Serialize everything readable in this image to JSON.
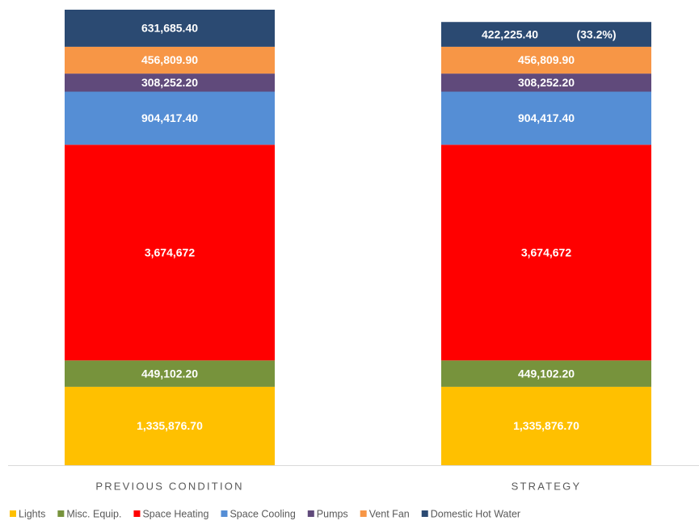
{
  "chart_data": {
    "type": "stacked_bar",
    "categories": [
      "PREVIOUS CONDITION",
      "STRATEGY"
    ],
    "series": [
      {
        "name": "Lights",
        "color": "#FFC000",
        "values": [
          1335876.7,
          1335876.7
        ],
        "value_labels": [
          "1,335,876.70",
          "1,335,876.70"
        ]
      },
      {
        "name": "Misc. Equip.",
        "color": "#77933C",
        "values": [
          449102.2,
          449102.2
        ],
        "value_labels": [
          "449,102.20",
          "449,102.20"
        ]
      },
      {
        "name": "Space Heating",
        "color": "#FF0000",
        "values": [
          3674672,
          3674672
        ],
        "value_labels": [
          "3,674,672",
          "3,674,672"
        ]
      },
      {
        "name": "Space Cooling",
        "color": "#558ED5",
        "values": [
          904417.4,
          904417.4
        ],
        "value_labels": [
          "904,417.40",
          "904,417.40"
        ]
      },
      {
        "name": "Pumps",
        "color": "#604A7B",
        "values": [
          308252.2,
          308252.2
        ],
        "value_labels": [
          "308,252.20",
          "308,252.20"
        ]
      },
      {
        "name": "Vent Fan",
        "color": "#F79646",
        "values": [
          456809.9,
          456809.9
        ],
        "value_labels": [
          "456,809.90",
          "456,809.90"
        ]
      },
      {
        "name": "Domestic Hot Water",
        "color": "#2B4A72",
        "values": [
          631685.4,
          422225.4
        ],
        "value_labels": [
          "631,685.40",
          "422,225.40"
        ]
      }
    ],
    "annotation": "(33.2%)",
    "legend": "bottom"
  }
}
